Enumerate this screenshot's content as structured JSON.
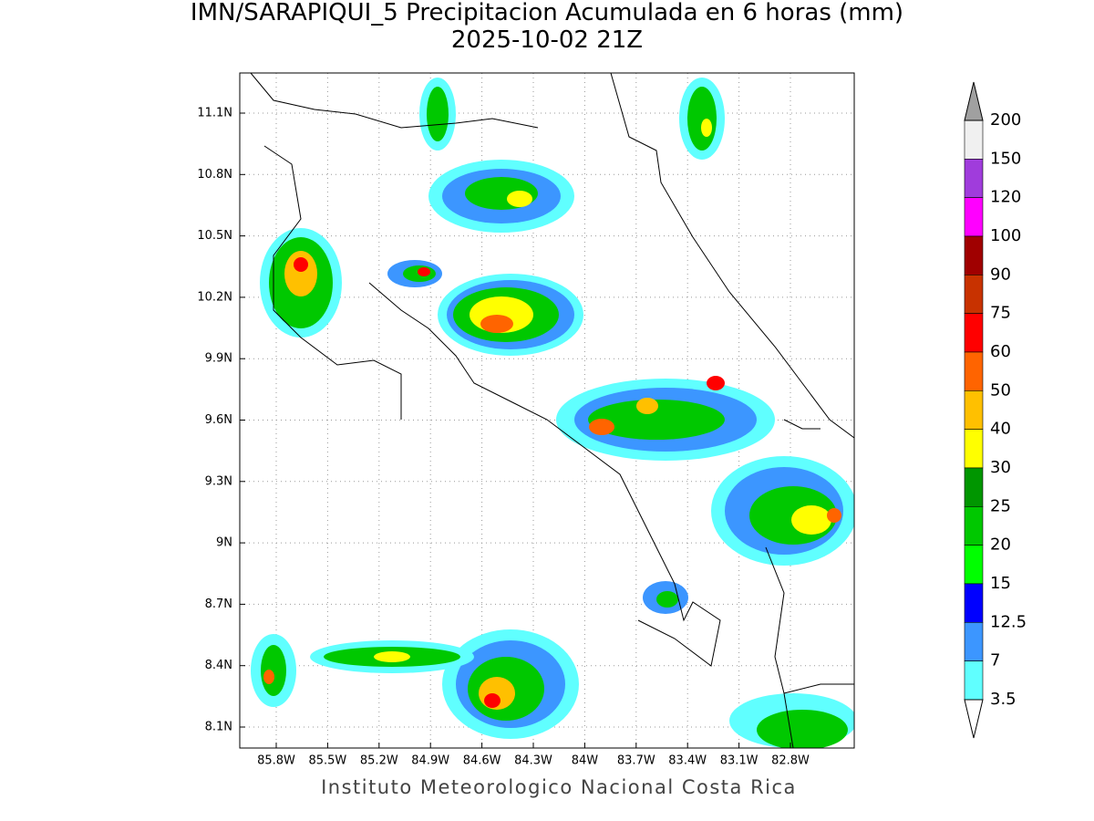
{
  "header": {
    "title": "IMN/SARAPIQUI_5 Precipitacion Acumulada en 6 horas (mm)",
    "subtitle": "2025-10-02 21Z"
  },
  "map": {
    "lat_ticks": [
      "11.1N",
      "10.8N",
      "10.5N",
      "10.2N",
      "9.9N",
      "9.6N",
      "9.3N",
      "9N",
      "8.7N",
      "8.4N",
      "8.1N"
    ],
    "lon_ticks": [
      "85.8W",
      "85.5W",
      "85.2W",
      "84.9W",
      "84.6W",
      "84.3W",
      "84W",
      "83.7W",
      "83.4W",
      "83.1W",
      "82.8W"
    ]
  },
  "colorbar": {
    "levels": [
      200,
      150,
      120,
      100,
      90,
      75,
      60,
      50,
      40,
      30,
      25,
      20,
      15,
      12.5,
      7,
      3.5
    ],
    "colors": [
      "#f0f0f0",
      "#a03cdc",
      "#ff00ff",
      "#a00000",
      "#c83200",
      "#ff0000",
      "#ff6400",
      "#ffc000",
      "#ffff00",
      "#009600",
      "#00c800",
      "#00ff00",
      "#0000ff",
      "#3c96ff",
      "#60ffff"
    ],
    "over_color": "#a0a0a0",
    "under_color": "#ffffff"
  },
  "footer": "Instituto Meteorologico Nacional Costa Rica"
}
